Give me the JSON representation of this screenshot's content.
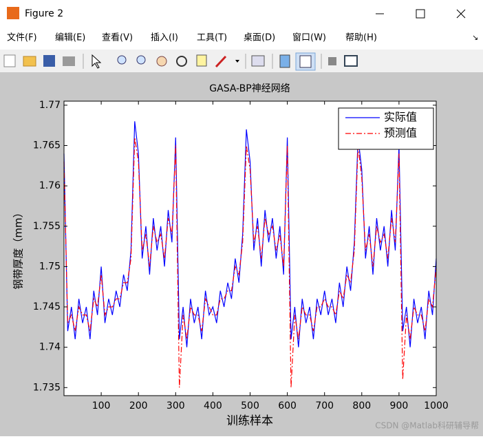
{
  "window": {
    "title": "Figure 2",
    "menu": [
      "文件(F)",
      "编辑(E)",
      "查看(V)",
      "插入(I)",
      "工具(T)",
      "桌面(D)",
      "窗口(W)",
      "帮助(H)"
    ]
  },
  "chart_data": {
    "type": "line",
    "title": "GASA-BP神经网络",
    "xlabel": "训练样本",
    "ylabel": "钢带厚度（mm）",
    "x": [
      0,
      10,
      20,
      30,
      40,
      50,
      60,
      70,
      80,
      90,
      100,
      110,
      120,
      130,
      140,
      150,
      160,
      170,
      180,
      190,
      200,
      210,
      220,
      230,
      240,
      250,
      260,
      270,
      280,
      290,
      300,
      310,
      320,
      330,
      340,
      350,
      360,
      370,
      380,
      390,
      400,
      410,
      420,
      430,
      440,
      450,
      460,
      470,
      480,
      490,
      500,
      510,
      520,
      530,
      540,
      550,
      560,
      570,
      580,
      590,
      600,
      610,
      620,
      630,
      640,
      650,
      660,
      670,
      680,
      690,
      700,
      710,
      720,
      730,
      740,
      750,
      760,
      770,
      780,
      790,
      800,
      810,
      820,
      830,
      840,
      850,
      860,
      870,
      880,
      890,
      900,
      910,
      920,
      930,
      940,
      950,
      960,
      970,
      980,
      990,
      1000
    ],
    "series": [
      {
        "name": "实际值",
        "color": "#0000ff",
        "dash": "solid",
        "values": [
          1.764,
          1.742,
          1.745,
          1.741,
          1.746,
          1.743,
          1.745,
          1.741,
          1.747,
          1.744,
          1.75,
          1.743,
          1.746,
          1.744,
          1.747,
          1.745,
          1.749,
          1.747,
          1.752,
          1.768,
          1.764,
          1.751,
          1.755,
          1.749,
          1.756,
          1.752,
          1.755,
          1.75,
          1.757,
          1.753,
          1.766,
          1.741,
          1.745,
          1.74,
          1.746,
          1.743,
          1.745,
          1.741,
          1.747,
          1.744,
          1.745,
          1.743,
          1.747,
          1.745,
          1.748,
          1.746,
          1.751,
          1.748,
          1.754,
          1.767,
          1.763,
          1.752,
          1.756,
          1.75,
          1.757,
          1.753,
          1.756,
          1.751,
          1.755,
          1.749,
          1.766,
          1.741,
          1.745,
          1.74,
          1.746,
          1.743,
          1.745,
          1.741,
          1.746,
          1.744,
          1.747,
          1.744,
          1.746,
          1.743,
          1.748,
          1.745,
          1.75,
          1.747,
          1.753,
          1.766,
          1.762,
          1.751,
          1.755,
          1.749,
          1.756,
          1.752,
          1.755,
          1.75,
          1.757,
          1.752,
          1.765,
          1.742,
          1.745,
          1.74,
          1.746,
          1.743,
          1.745,
          1.741,
          1.747,
          1.744,
          1.751
        ]
      },
      {
        "name": "预测值",
        "color": "#ff0000",
        "dash": "dashdot",
        "values": [
          1.763,
          1.743,
          1.744,
          1.742,
          1.745,
          1.744,
          1.744,
          1.742,
          1.746,
          1.745,
          1.749,
          1.744,
          1.745,
          1.745,
          1.746,
          1.746,
          1.748,
          1.748,
          1.751,
          1.766,
          1.763,
          1.752,
          1.754,
          1.75,
          1.755,
          1.753,
          1.754,
          1.751,
          1.756,
          1.754,
          1.765,
          1.735,
          1.744,
          1.741,
          1.745,
          1.744,
          1.744,
          1.742,
          1.746,
          1.745,
          1.744,
          1.744,
          1.746,
          1.746,
          1.747,
          1.747,
          1.75,
          1.749,
          1.753,
          1.765,
          1.762,
          1.753,
          1.755,
          1.751,
          1.756,
          1.754,
          1.755,
          1.752,
          1.754,
          1.75,
          1.765,
          1.735,
          1.744,
          1.741,
          1.745,
          1.744,
          1.744,
          1.742,
          1.745,
          1.745,
          1.746,
          1.745,
          1.745,
          1.744,
          1.747,
          1.746,
          1.749,
          1.748,
          1.752,
          1.765,
          1.761,
          1.752,
          1.754,
          1.75,
          1.755,
          1.753,
          1.754,
          1.751,
          1.756,
          1.753,
          1.764,
          1.736,
          1.744,
          1.741,
          1.745,
          1.744,
          1.744,
          1.742,
          1.746,
          1.745,
          1.75
        ]
      }
    ],
    "xlim": [
      0,
      1000
    ],
    "ylim": [
      1.734,
      1.7705
    ],
    "xticks": [
      100,
      200,
      300,
      400,
      500,
      600,
      700,
      800,
      900,
      1000
    ],
    "yticks": [
      1.735,
      1.74,
      1.745,
      1.75,
      1.755,
      1.76,
      1.765,
      1.77
    ],
    "grid": false,
    "legend": "northeast"
  },
  "watermark": "CSDN @Matlab科研辅导帮"
}
